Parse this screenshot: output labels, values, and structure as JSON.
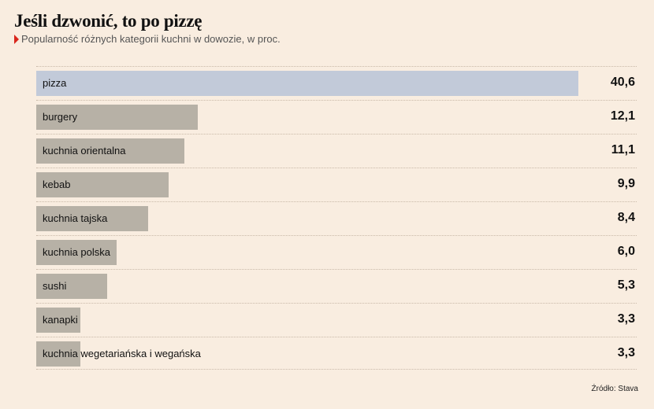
{
  "title": "Jeśli dzwonić, to po pizzę",
  "subtitle": "Popularność różnych kategorii kuchni w dowozie, w proc.",
  "source": "Źródło: Stava",
  "colors": {
    "background": "#f9ede0",
    "highlight_bar": "#c2cad9",
    "bar": "#b7b1a6",
    "accent_arrow": "#d9261c"
  },
  "chart_data": {
    "type": "bar",
    "orientation": "horizontal",
    "title": "Jeśli dzwonić, to po pizzę",
    "subtitle": "Popularność różnych kategorii kuchni w dowozie, w proc.",
    "xlabel": "",
    "ylabel": "",
    "xlim": [
      0,
      41
    ],
    "grid": false,
    "legend": "none",
    "highlighted_category": "pizza",
    "categories": [
      "pizza",
      "burgery",
      "kuchnia orientalna",
      "kebab",
      "kuchnia tajska",
      "kuchnia polska",
      "sushi",
      "kanapki",
      "kuchnia wegetariańska i wegańska"
    ],
    "values": [
      40.6,
      12.1,
      11.1,
      9.9,
      8.4,
      6.0,
      5.3,
      3.3,
      3.3
    ],
    "value_labels": [
      "40,6",
      "12,1",
      "11,1",
      "9,9",
      "8,4",
      "6,0",
      "5,3",
      "3,3",
      "3,3"
    ]
  }
}
